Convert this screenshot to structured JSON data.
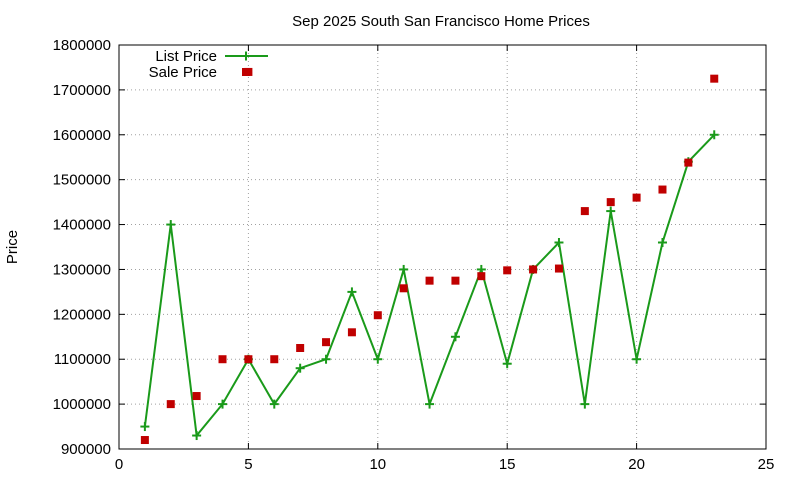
{
  "chart_data": {
    "type": "line",
    "title": "Sep 2025 South San Francisco Home Prices",
    "xlabel": "",
    "ylabel": "Price",
    "xlim": [
      0,
      25
    ],
    "ylim": [
      900000,
      1800000
    ],
    "xticks": [
      0,
      5,
      10,
      15,
      20,
      25
    ],
    "yticks": [
      900000,
      1000000,
      1100000,
      1200000,
      1300000,
      1400000,
      1500000,
      1600000,
      1700000,
      1800000
    ],
    "grid": true,
    "legend_position": "top-left",
    "series": [
      {
        "name": "List Price",
        "style": "line-with-plus-markers",
        "color": "#1a9a1a",
        "x": [
          1,
          2,
          3,
          4,
          5,
          6,
          7,
          8,
          9,
          10,
          11,
          12,
          13,
          14,
          15,
          16,
          17,
          18,
          19,
          20,
          21,
          22,
          23
        ],
        "y": [
          950000,
          1400000,
          930000,
          1000000,
          1100000,
          1000000,
          1080000,
          1100000,
          1250000,
          1100000,
          1300000,
          1000000,
          1150000,
          1300000,
          1090000,
          1300000,
          1360000,
          1000000,
          1430000,
          1100000,
          1360000,
          1540000,
          1600000
        ]
      },
      {
        "name": "Sale Price",
        "style": "square-markers",
        "color": "#c00000",
        "x": [
          1,
          2,
          3,
          4,
          5,
          5,
          6,
          7,
          8,
          9,
          10,
          11,
          12,
          13,
          14,
          15,
          16,
          17,
          18,
          19,
          20,
          21,
          22,
          23
        ],
        "y": [
          920000,
          1000000,
          1018000,
          1100000,
          1740000,
          1100000,
          1100000,
          1125000,
          1138000,
          1160000,
          1198000,
          1258000,
          1275000,
          1275000,
          1285000,
          1298000,
          1300000,
          1302000,
          1430000,
          1450000,
          1460000,
          1478000,
          1538000,
          1725000
        ]
      }
    ]
  }
}
